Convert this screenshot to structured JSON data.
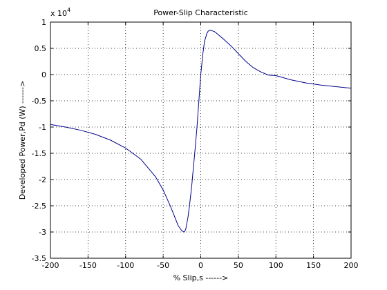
{
  "chart_data": {
    "type": "line",
    "title": "Power-Slip Characteristic",
    "xlabel": "% Slip,s ------>",
    "ylabel": "Developed Power,Pd (W) ------>",
    "y_multiplier": {
      "base": "x 10",
      "exponent": "4"
    },
    "xlim": [
      -200,
      200
    ],
    "ylim": [
      -3.5,
      1
    ],
    "grid": true,
    "x_ticks": [
      -200,
      -150,
      -100,
      -50,
      0,
      50,
      100,
      150,
      200
    ],
    "y_ticks": [
      1,
      0.5,
      0,
      -0.5,
      -1,
      -1.5,
      -2,
      -2.5,
      -3,
      -3.5
    ],
    "x_tick_labels": [
      "-200",
      "-150",
      "-100",
      "-50",
      "0",
      "50",
      "100",
      "150",
      "200"
    ],
    "y_tick_labels": [
      "1",
      "0.5",
      "0",
      "-0.5",
      "-1",
      "-1.5",
      "-2",
      "-2.5",
      "-3",
      "-3.5"
    ],
    "line_color": "#00008b",
    "series": [
      {
        "x": [
          -200,
          -180,
          -160,
          -140,
          -120,
          -100,
          -80,
          -60,
          -50,
          -40,
          -35,
          -30,
          -25,
          -22,
          -20,
          -17,
          -15,
          -12,
          -10,
          -8,
          -5,
          -3,
          0,
          3,
          5,
          8,
          10,
          12,
          14,
          16,
          18,
          20,
          25,
          30,
          40,
          50,
          60,
          70,
          80,
          90,
          100,
          120,
          140,
          160,
          180,
          200
        ],
        "y": [
          -0.95,
          -1.0,
          -1.06,
          -1.14,
          -1.25,
          -1.4,
          -1.61,
          -1.95,
          -2.2,
          -2.52,
          -2.7,
          -2.88,
          -2.98,
          -3.0,
          -2.95,
          -2.72,
          -2.5,
          -2.12,
          -1.8,
          -1.5,
          -1.0,
          -0.6,
          0.0,
          0.42,
          0.63,
          0.78,
          0.83,
          0.845,
          0.84,
          0.83,
          0.82,
          0.8,
          0.74,
          0.68,
          0.55,
          0.4,
          0.25,
          0.13,
          0.05,
          -0.01,
          -0.02,
          -0.1,
          -0.16,
          -0.2,
          -0.23,
          -0.26
        ]
      }
    ]
  }
}
